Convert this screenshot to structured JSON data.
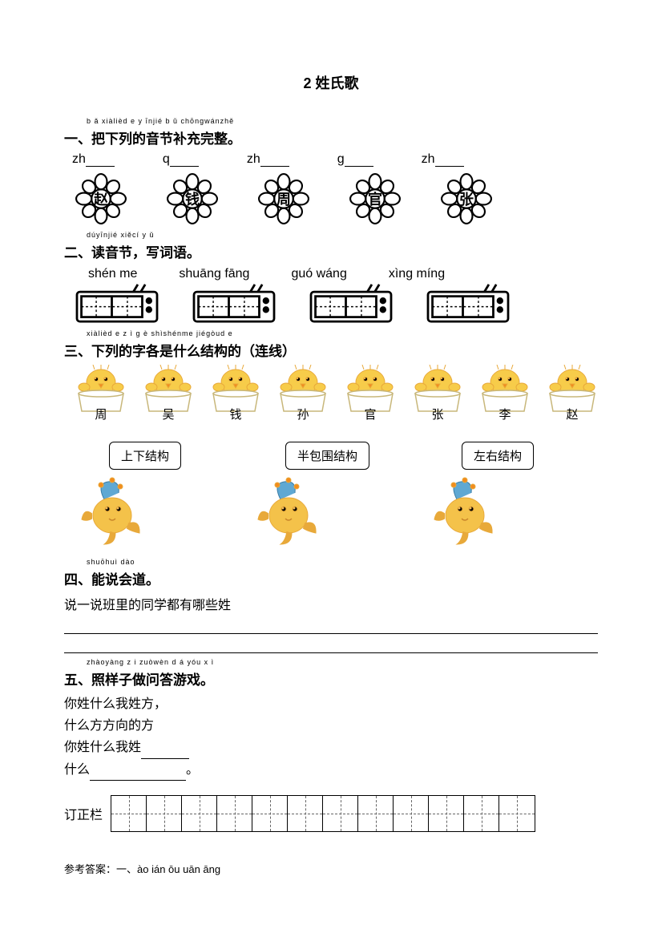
{
  "title": "2 姓氏歌",
  "q1": {
    "ruby": "b ǎ xiàlièd e y īnjié b ǔ chōngwánzhě",
    "heading": "一、把下列的音节补充完整。",
    "prefixes": [
      "zh",
      "q",
      "zh",
      "g",
      "zh"
    ],
    "chars": [
      "赵",
      "钱",
      "周",
      "官",
      "张"
    ]
  },
  "q2": {
    "ruby": "dúyīnjié xiěcí y ǔ",
    "heading": "二、读音节，写词语。",
    "pinyin": [
      "shén me",
      "shuāng fāng",
      "guó wáng",
      "xìng míng"
    ]
  },
  "q3": {
    "ruby": "xiàlièd e z ì g è shìshénme jiégòud e",
    "heading": "三、下列的字各是什么结构的（连线）",
    "chars": [
      "周",
      "吴",
      "钱",
      "孙",
      "官",
      "张",
      "李",
      "赵"
    ],
    "structures": [
      "上下结构",
      "半包围结构",
      "左右结构"
    ]
  },
  "q4": {
    "ruby": "shuōhuì dào",
    "heading": "四、能说会道。",
    "body": "说一说班里的同学都有哪些姓"
  },
  "q5": {
    "ruby": "zhàoyàng z i zuòwèn d á yóu x ì",
    "heading": "五、照样子做问答游戏。",
    "lines": [
      "你姓什么我姓方，",
      "什么方方向的方",
      "你姓什么我姓",
      "什么"
    ]
  },
  "correction_label": "订正栏",
  "answer": "参考答案：一、ào ián ōu   uān   āng",
  "colors": {
    "chick_body": "#f7cc4a",
    "chick_outline": "#e8a93a",
    "chick_beak": "#f28c1e",
    "chick_pot": "#ffffff",
    "chick_pot_outline": "#c8b77a",
    "fish_body": "#f4c24a",
    "fish_fin": "#e8a93a",
    "fish_hat": "#5fa8d3"
  }
}
